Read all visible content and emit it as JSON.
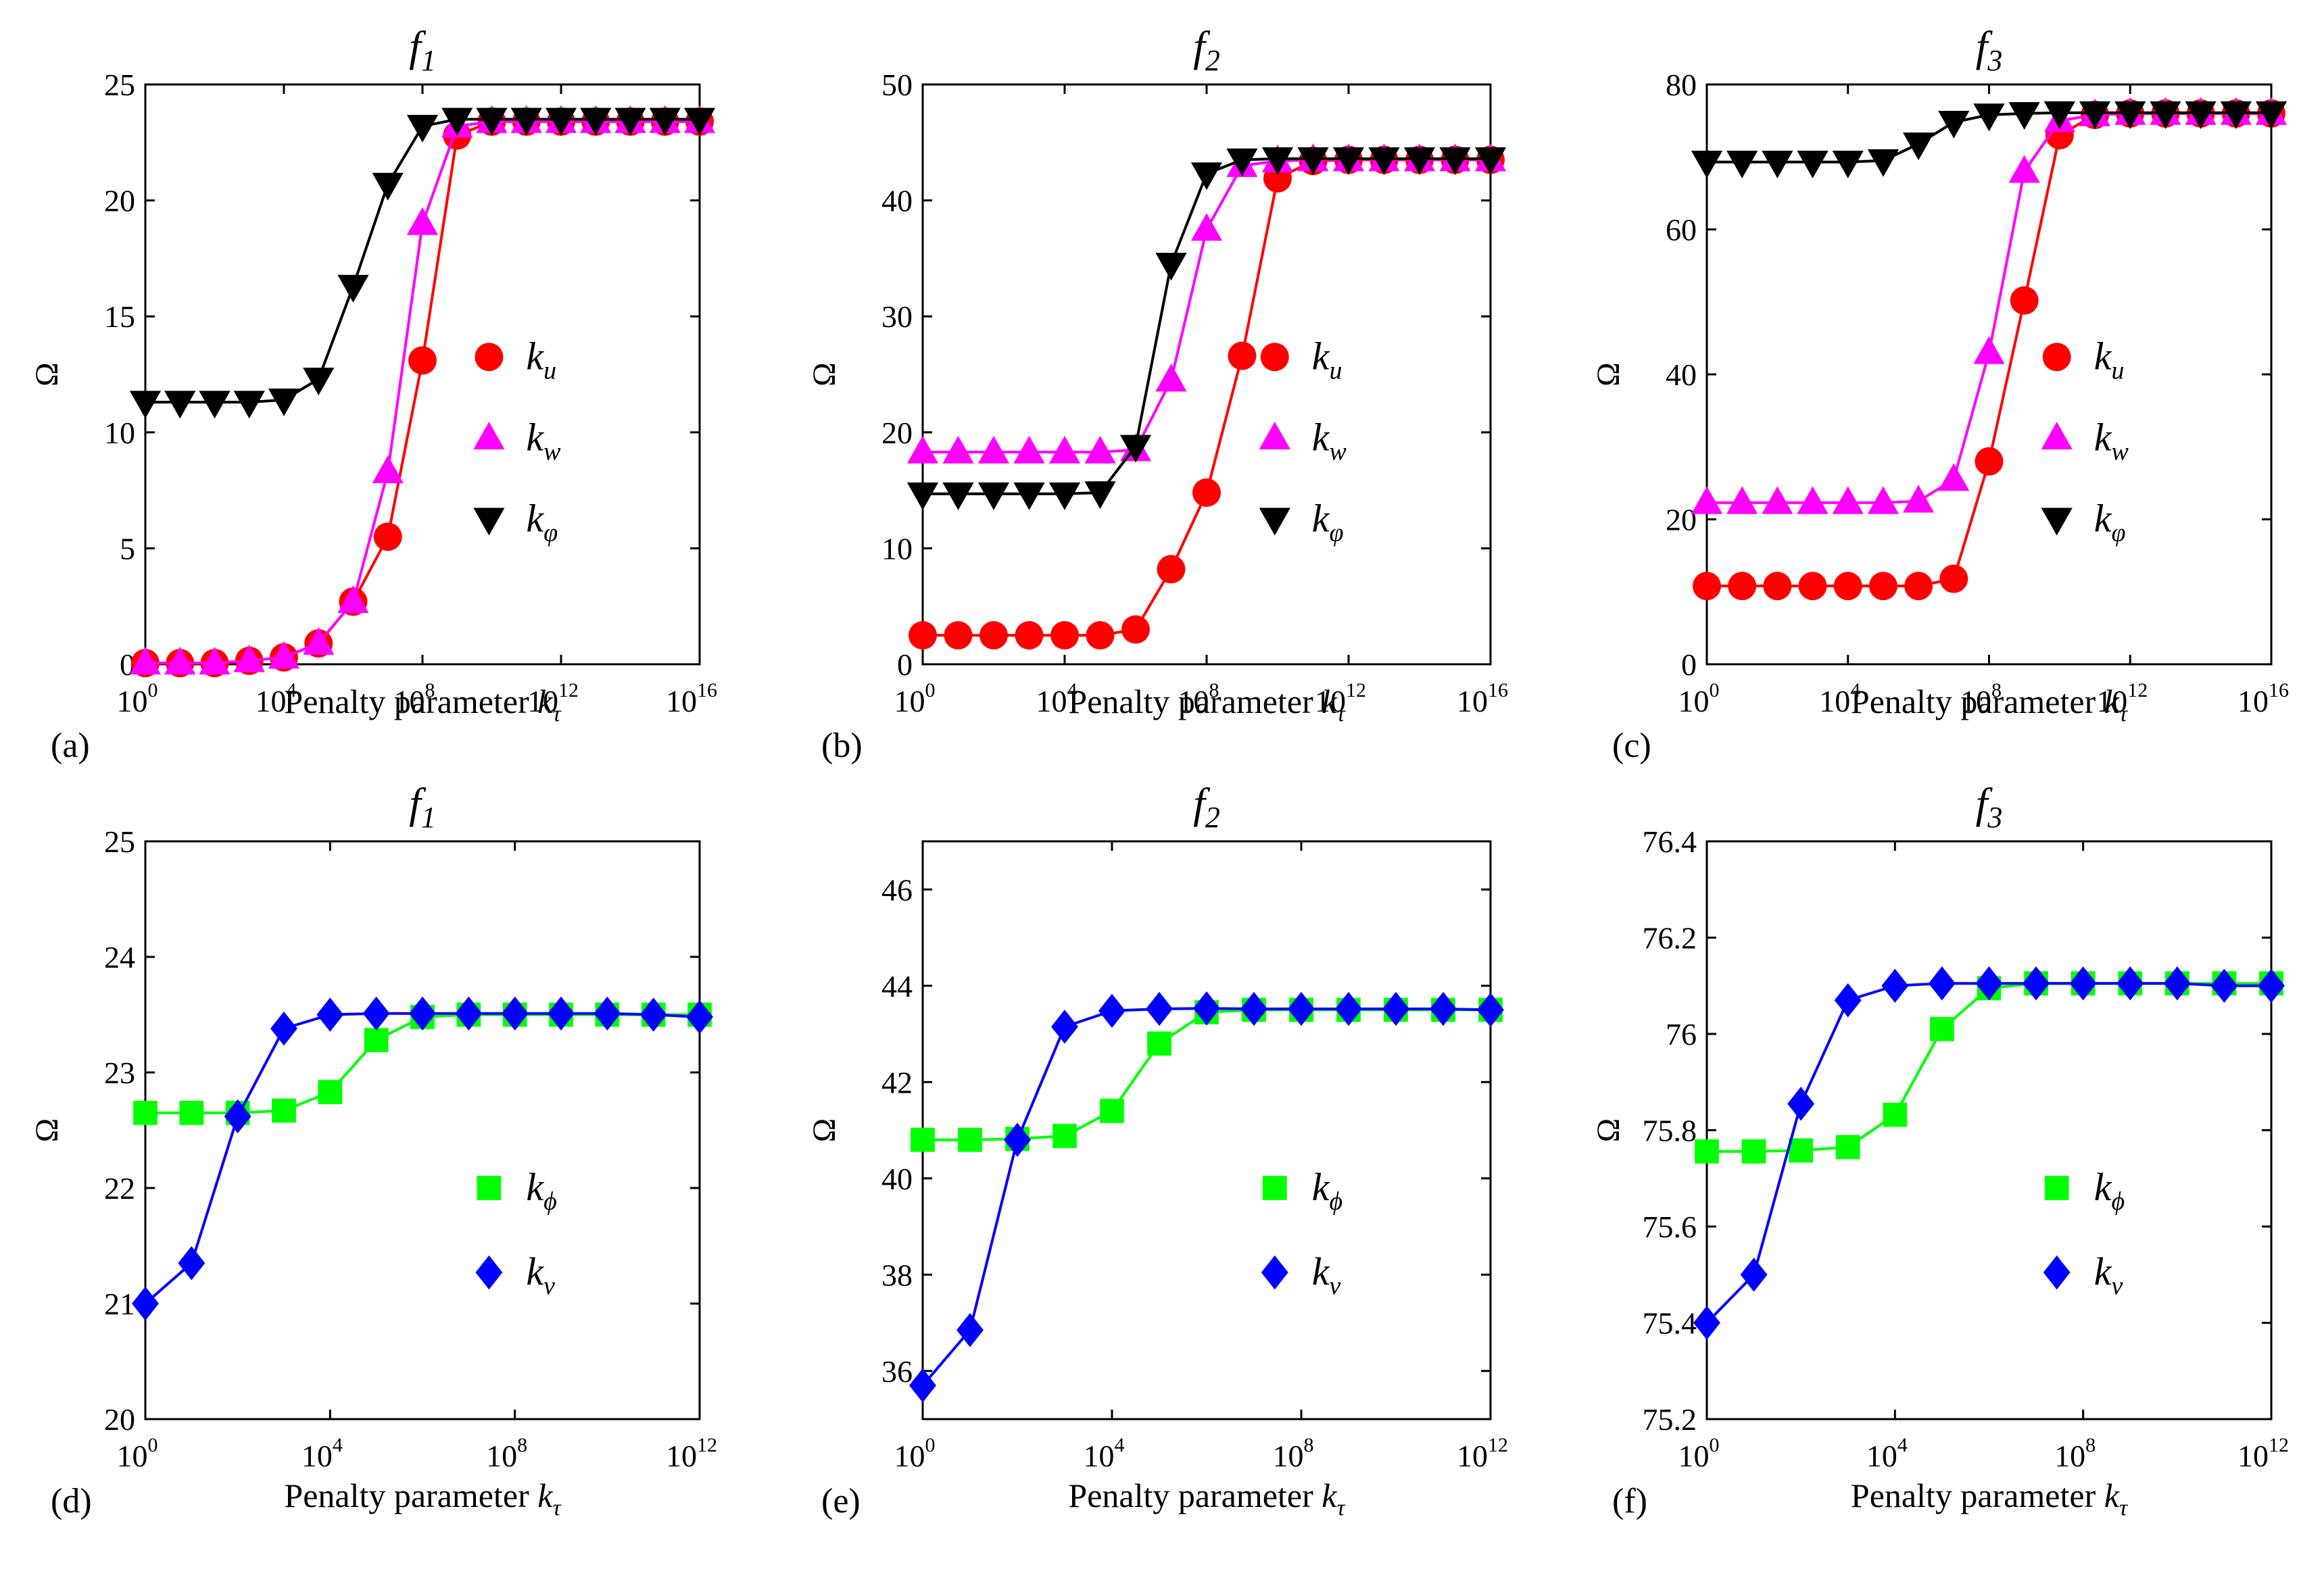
{
  "chart_data": [
    {
      "type": "line",
      "panel": "(a)",
      "title": "f",
      "title_sub": "1",
      "ylabel": "Ω",
      "xlabel": "Penalty parameter ",
      "xlabel_var": "k",
      "xlabel_sub": "τ",
      "xscale": "log10",
      "x_exponents": [
        0,
        1,
        2,
        3,
        4,
        5,
        6,
        7,
        8,
        9,
        10,
        11,
        12,
        13,
        14,
        15,
        16
      ],
      "xlim_exp": [
        0,
        16
      ],
      "x_ticks_exp": [
        0,
        4,
        8,
        12,
        16
      ],
      "ylim": [
        0,
        25
      ],
      "y_ticks": [
        "0",
        "5",
        "10",
        "15",
        "20",
        "25"
      ],
      "legend_position": "center-right",
      "series": [
        {
          "name": "k",
          "sub": "u",
          "color": "#ff0000",
          "marker": "circle",
          "values": [
            0.05,
            0.05,
            0.05,
            0.15,
            0.3,
            0.9,
            2.7,
            5.5,
            13.1,
            22.8,
            23.4,
            23.4,
            23.4,
            23.4,
            23.4,
            23.4,
            23.4
          ]
        },
        {
          "name": "k",
          "sub": "w",
          "color": "#ff00ff",
          "marker": "triangle-up",
          "values": [
            0.05,
            0.05,
            0.05,
            0.15,
            0.3,
            0.9,
            2.7,
            8.3,
            19.0,
            23.2,
            23.4,
            23.4,
            23.4,
            23.4,
            23.4,
            23.4,
            23.4
          ]
        },
        {
          "name": "k",
          "sub": "φ",
          "color": "#000000",
          "marker": "triangle-down",
          "values": [
            11.3,
            11.3,
            11.3,
            11.3,
            11.4,
            12.3,
            16.3,
            20.7,
            23.2,
            23.5,
            23.5,
            23.5,
            23.5,
            23.5,
            23.5,
            23.5,
            23.5
          ]
        }
      ]
    },
    {
      "type": "line",
      "panel": "(b)",
      "title": "f",
      "title_sub": "2",
      "ylabel": "Ω",
      "xlabel": "Penalty parameter ",
      "xlabel_var": "k",
      "xlabel_sub": "τ",
      "xscale": "log10",
      "x_exponents": [
        0,
        1,
        2,
        3,
        4,
        5,
        6,
        7,
        8,
        9,
        10,
        11,
        12,
        13,
        14,
        15,
        16
      ],
      "xlim_exp": [
        0,
        16
      ],
      "x_ticks_exp": [
        0,
        4,
        8,
        12,
        16
      ],
      "ylim": [
        0,
        50
      ],
      "y_ticks": [
        "0",
        "10",
        "20",
        "30",
        "40",
        "50"
      ],
      "legend_position": "center-right",
      "series": [
        {
          "name": "k",
          "sub": "u",
          "color": "#ff0000",
          "marker": "circle",
          "values": [
            2.5,
            2.5,
            2.5,
            2.5,
            2.5,
            2.5,
            3.0,
            8.2,
            14.8,
            26.6,
            41.9,
            43.4,
            43.5,
            43.5,
            43.5,
            43.5,
            43.5
          ]
        },
        {
          "name": "k",
          "sub": "w",
          "color": "#ff00ff",
          "marker": "triangle-up",
          "values": [
            18.3,
            18.3,
            18.3,
            18.3,
            18.3,
            18.3,
            18.5,
            24.5,
            37.5,
            43.0,
            43.4,
            43.5,
            43.5,
            43.5,
            43.5,
            43.5,
            43.5
          ]
        },
        {
          "name": "k",
          "sub": "φ",
          "color": "#000000",
          "marker": "triangle-down",
          "values": [
            14.7,
            14.7,
            14.7,
            14.7,
            14.7,
            14.8,
            18.8,
            34.5,
            42.3,
            43.5,
            43.6,
            43.6,
            43.6,
            43.6,
            43.6,
            43.6,
            43.6
          ]
        }
      ]
    },
    {
      "type": "line",
      "panel": "(c)",
      "title": "f",
      "title_sub": "3",
      "ylabel": "Ω",
      "xlabel": "Penalty parameter ",
      "xlabel_var": "k",
      "xlabel_sub": "τ",
      "xscale": "log10",
      "x_exponents": [
        0,
        1,
        2,
        3,
        4,
        5,
        6,
        7,
        8,
        9,
        10,
        11,
        12,
        13,
        14,
        15,
        16
      ],
      "xlim_exp": [
        0,
        16
      ],
      "x_ticks_exp": [
        0,
        4,
        8,
        12,
        16
      ],
      "ylim": [
        0,
        80
      ],
      "y_ticks": [
        "0",
        "20",
        "40",
        "60",
        "80"
      ],
      "legend_position": "center-right",
      "series": [
        {
          "name": "k",
          "sub": "u",
          "color": "#ff0000",
          "marker": "circle",
          "values": [
            10.8,
            10.8,
            10.8,
            10.8,
            10.8,
            10.8,
            10.8,
            11.8,
            28.0,
            50.2,
            73.0,
            75.8,
            76.0,
            76.0,
            76.0,
            76.0,
            76.0
          ]
        },
        {
          "name": "k",
          "sub": "w",
          "color": "#ff00ff",
          "marker": "triangle-up",
          "values": [
            22.3,
            22.3,
            22.3,
            22.3,
            22.3,
            22.3,
            22.5,
            25.5,
            43.0,
            68.0,
            75.0,
            75.8,
            76.0,
            76.0,
            76.0,
            76.0,
            76.0
          ]
        },
        {
          "name": "k",
          "sub": "φ",
          "color": "#000000",
          "marker": "triangle-down",
          "values": [
            69.3,
            69.3,
            69.3,
            69.3,
            69.3,
            69.5,
            71.8,
            74.8,
            75.8,
            76.0,
            76.1,
            76.1,
            76.1,
            76.1,
            76.1,
            76.1,
            76.1
          ]
        }
      ]
    },
    {
      "type": "line",
      "panel": "(d)",
      "title": "f",
      "title_sub": "1",
      "ylabel": "Ω",
      "xlabel": "Penalty parameter ",
      "xlabel_var": "k",
      "xlabel_sub": "τ",
      "xscale": "log10",
      "x_exponents": [
        0,
        1,
        2,
        3,
        4,
        5,
        6,
        7,
        8,
        9,
        10,
        11,
        12
      ],
      "xlim_exp": [
        0,
        12
      ],
      "x_ticks_exp": [
        0,
        4,
        8,
        12
      ],
      "ylim": [
        20,
        25
      ],
      "y_ticks": [
        "20",
        "21",
        "22",
        "23",
        "24",
        "25"
      ],
      "legend_position": "center-right",
      "series": [
        {
          "name": "k",
          "sub": "ϕ",
          "color": "#00ff00",
          "marker": "square",
          "values": [
            22.65,
            22.65,
            22.65,
            22.67,
            22.83,
            23.28,
            23.48,
            23.5,
            23.5,
            23.5,
            23.5,
            23.5,
            23.5
          ]
        },
        {
          "name": "k",
          "sub": "ν",
          "color": "#0000ff",
          "marker": "diamond",
          "values": [
            21.0,
            21.35,
            22.62,
            23.38,
            23.5,
            23.51,
            23.51,
            23.51,
            23.51,
            23.51,
            23.51,
            23.5,
            23.48
          ]
        }
      ]
    },
    {
      "type": "line",
      "panel": "(e)",
      "title": "f",
      "title_sub": "2",
      "ylabel": "Ω",
      "xlabel": "Penalty parameter ",
      "xlabel_var": "k",
      "xlabel_sub": "τ",
      "xscale": "log10",
      "x_exponents": [
        0,
        1,
        2,
        3,
        4,
        5,
        6,
        7,
        8,
        9,
        10,
        11,
        12
      ],
      "xlim_exp": [
        0,
        12
      ],
      "x_ticks_exp": [
        0,
        4,
        8,
        12
      ],
      "ylim": [
        35,
        47
      ],
      "y_ticks": [
        "36",
        "38",
        "40",
        "42",
        "44",
        "46"
      ],
      "legend_position": "center-right",
      "series": [
        {
          "name": "k",
          "sub": "ϕ",
          "color": "#00ff00",
          "marker": "square",
          "values": [
            40.8,
            40.8,
            40.82,
            40.88,
            41.4,
            42.8,
            43.45,
            43.5,
            43.5,
            43.5,
            43.5,
            43.5,
            43.5
          ]
        },
        {
          "name": "k",
          "sub": "ν",
          "color": "#0000ff",
          "marker": "diamond",
          "values": [
            35.7,
            36.85,
            40.8,
            43.15,
            43.48,
            43.52,
            43.53,
            43.52,
            43.52,
            43.52,
            43.52,
            43.52,
            43.5
          ]
        }
      ]
    },
    {
      "type": "line",
      "panel": "(f)",
      "title": "f",
      "title_sub": "3",
      "ylabel": "Ω",
      "xlabel": "Penalty parameter ",
      "xlabel_var": "k",
      "xlabel_sub": "τ",
      "xscale": "log10",
      "x_exponents": [
        0,
        1,
        2,
        3,
        4,
        5,
        6,
        7,
        8,
        9,
        10,
        11,
        12
      ],
      "xlim_exp": [
        0,
        12
      ],
      "x_ticks_exp": [
        0,
        4,
        8,
        12
      ],
      "ylim": [
        75.2,
        76.4
      ],
      "y_ticks": [
        "75.2",
        "75.4",
        "75.6",
        "75.8",
        "76",
        "76.2",
        "76.4"
      ],
      "legend_position": "center-right",
      "series": [
        {
          "name": "k",
          "sub": "ϕ",
          "color": "#00ff00",
          "marker": "square",
          "values": [
            75.756,
            75.756,
            75.758,
            75.765,
            75.832,
            76.01,
            76.095,
            76.105,
            76.105,
            76.105,
            76.105,
            76.105,
            76.105
          ]
        },
        {
          "name": "k",
          "sub": "ν",
          "color": "#0000ff",
          "marker": "diamond",
          "values": [
            75.4,
            75.5,
            75.855,
            76.07,
            76.1,
            76.105,
            76.105,
            76.105,
            76.105,
            76.105,
            76.105,
            76.1,
            76.1
          ]
        }
      ]
    }
  ]
}
